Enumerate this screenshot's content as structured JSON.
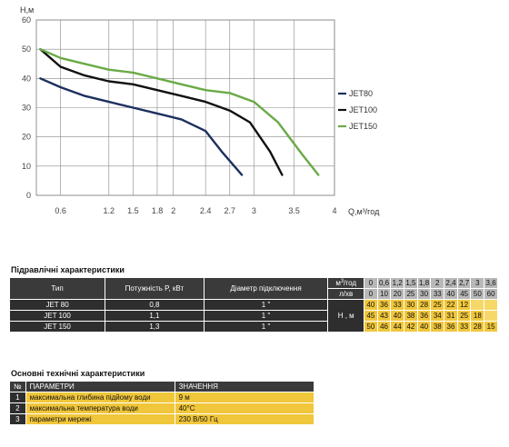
{
  "chart_data": {
    "type": "line",
    "ylabel": "Н,м",
    "xlabel": "Q,м³/год",
    "xlim": [
      0.3,
      4
    ],
    "ylim": [
      0,
      60
    ],
    "x_ticks": [
      "0.6",
      "1.2",
      "1.5",
      "1.8",
      "2",
      "2.4",
      "2.7",
      "3",
      "3.5",
      "4"
    ],
    "x_tick_values": [
      0.6,
      1.2,
      1.5,
      1.8,
      2.0,
      2.4,
      2.7,
      3.0,
      3.5,
      4.0
    ],
    "y_ticks": [
      0,
      10,
      20,
      30,
      40,
      50,
      60
    ],
    "grid": true,
    "legend": "right",
    "series": [
      {
        "name": "JET80",
        "color": "#1c2f5e",
        "x": [
          0.35,
          0.6,
          0.9,
          1.2,
          1.5,
          1.8,
          2.1,
          2.4,
          2.6,
          2.85
        ],
        "y": [
          40,
          37,
          34,
          32,
          30,
          28,
          26,
          22,
          15,
          7
        ]
      },
      {
        "name": "JET100",
        "color": "#111111",
        "x": [
          0.35,
          0.6,
          0.9,
          1.2,
          1.5,
          1.8,
          2.1,
          2.4,
          2.7,
          2.95,
          3.2,
          3.35
        ],
        "y": [
          50,
          44,
          41,
          39,
          38,
          36,
          34,
          32,
          29,
          25,
          15,
          7
        ]
      },
      {
        "name": "JET150",
        "color": "#6aaa46",
        "x": [
          0.35,
          0.6,
          0.9,
          1.2,
          1.5,
          1.8,
          2.1,
          2.4,
          2.7,
          3.0,
          3.3,
          3.6,
          3.8
        ],
        "y": [
          50,
          47,
          45,
          43,
          42,
          40,
          38,
          36,
          35,
          32,
          25,
          14,
          7
        ]
      }
    ]
  },
  "hydraulic": {
    "title": "Підравлічні характеристики",
    "headers": {
      "type": "Тип",
      "power": "Потужність  P, кВт",
      "diameter": "Діаметр підключення"
    },
    "units": {
      "q1": "м³/год",
      "q2": "л/хв",
      "h": "Н , м"
    },
    "q_m3h": [
      "0",
      "0,6",
      "1,2",
      "1,5",
      "1,8",
      "2",
      "2,4",
      "2,7",
      "3",
      "3,6"
    ],
    "q_lmin": [
      "0",
      "10",
      "20",
      "25",
      "30",
      "33",
      "40",
      "45",
      "50",
      "60"
    ],
    "rows": [
      {
        "type": "JET 80",
        "power": "0,8",
        "diameter": "1 \"",
        "h": [
          "40",
          "36",
          "33",
          "30",
          "28",
          "25",
          "22",
          "12",
          "",
          ""
        ]
      },
      {
        "type": "JET 100",
        "power": "1,1",
        "diameter": "1 \"",
        "h": [
          "45",
          "43",
          "40",
          "38",
          "36",
          "34",
          "31",
          "25",
          "18",
          ""
        ]
      },
      {
        "type": "JET 150",
        "power": "1,3",
        "diameter": "1 \"",
        "h": [
          "50",
          "46",
          "44",
          "42",
          "40",
          "38",
          "36",
          "33",
          "28",
          "15"
        ]
      }
    ]
  },
  "technical": {
    "title": "Основні технічні характеристики",
    "headers": {
      "num": "№",
      "param": "ПАРАМЕТРИ",
      "value": "ЗНАЧЕННЯ"
    },
    "rows": [
      {
        "num": "1",
        "param": "максимальна глибина підйому води",
        "value": "9 м"
      },
      {
        "num": "2",
        "param": "максимальна температура води",
        "value": "40°C"
      },
      {
        "num": "3",
        "param": "параметри мережі",
        "value": "230 В/50 Гц"
      }
    ]
  }
}
